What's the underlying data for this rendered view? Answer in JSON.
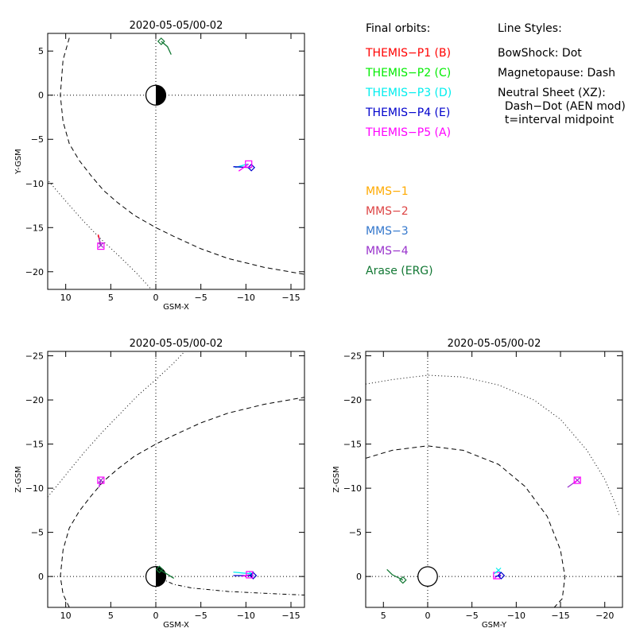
{
  "chart_data": [
    {
      "type": "scatter",
      "title": "2020-05-05/00-02",
      "xlabel": "GSM-X",
      "ylabel": "Y-GSM",
      "xlim": [
        12,
        -16.5
      ],
      "ylim": [
        7,
        -22
      ],
      "xticks": [
        10,
        5,
        0,
        -5,
        -10,
        -15
      ],
      "yticks": [
        -20,
        -15,
        -10,
        -5,
        0,
        5
      ],
      "grid": "dotted zero lines",
      "curves": [
        {
          "name": "bow-shock",
          "style": "dotted",
          "x": [
            12.1,
            10,
            8,
            6,
            4,
            2,
            0.5
          ],
          "y": [
            -9.5,
            -12,
            -14.3,
            -16.4,
            -18.3,
            -20.3,
            -22
          ]
        },
        {
          "name": "magnetopause",
          "style": "dashed",
          "x": [
            9.6,
            10.3,
            10.6,
            10.3,
            9.6,
            8.5,
            7.2,
            5.8,
            4.2,
            2.4,
            0,
            -2,
            -5,
            -8,
            -12,
            -16.5
          ],
          "y": [
            6.5,
            4,
            0,
            -3,
            -5.5,
            -7.4,
            -9.1,
            -10.8,
            -12.2,
            -13.6,
            -15,
            -16,
            -17.4,
            -18.5,
            -19.5,
            -20.3
          ]
        }
      ],
      "tracks": [
        {
          "name": "THEMIS-P5",
          "color": "#ff00ff",
          "x": [
            6.4,
            6.1
          ],
          "y": [
            -15.8,
            -17.1
          ],
          "marker": "square"
        },
        {
          "name": "THEMIS-P1",
          "color": "#ff0000",
          "x": [
            6.4,
            6.1
          ],
          "y": [
            -15.8,
            -17.1
          ],
          "marker": "none"
        },
        {
          "name": "MMS-4",
          "color": "#9933cc",
          "x": [
            6.3,
            6.1
          ],
          "y": [
            -16.2,
            -17
          ],
          "marker": "x"
        },
        {
          "name": "THEMIS-P3",
          "color": "#00eeee",
          "x": [
            -8.8,
            -10.2
          ],
          "y": [
            -8.2,
            -7.8
          ],
          "marker": "none"
        },
        {
          "name": "THEMIS-P4",
          "color": "#0000cc",
          "x": [
            -8.6,
            -10.6
          ],
          "y": [
            -8.1,
            -8.2
          ],
          "marker": "diamond"
        },
        {
          "name": "THEMIS-P5 (A)",
          "color": "#ff00ff",
          "x": [
            -9.2,
            -10.3
          ],
          "y": [
            -8.6,
            -7.8
          ],
          "marker": "square"
        },
        {
          "name": "Arase (ERG)",
          "color": "#117733",
          "x": [
            -1.7,
            -1.3,
            -0.6
          ],
          "y": [
            4.6,
            5.5,
            6.1
          ],
          "marker": "diamond"
        }
      ]
    },
    {
      "type": "scatter",
      "title": "2020-05-05/00-02",
      "xlabel": "GSM-X",
      "ylabel": "Z-GSM",
      "xlim": [
        12,
        -16.5
      ],
      "ylim": [
        -25.5,
        3.5
      ],
      "xticks": [
        10,
        5,
        0,
        -5,
        -10,
        -15
      ],
      "yticks": [
        -25,
        -20,
        -15,
        -10,
        -5,
        0
      ],
      "grid": "dotted zero lines",
      "curves": [
        {
          "name": "bow-shock",
          "style": "dotted",
          "x": [
            12,
            10,
            8,
            6,
            4,
            2,
            0,
            -2,
            -3.2
          ],
          "y": [
            -9,
            -11.5,
            -14,
            -16.3,
            -18.4,
            -20.5,
            -22.3,
            -24.2,
            -25.5
          ]
        },
        {
          "name": "magnetopause",
          "style": "dashed",
          "x": [
            9.6,
            10.3,
            10.6,
            10.3,
            9.6,
            8.5,
            7.2,
            5.8,
            4.2,
            2.4,
            0,
            -2,
            -5,
            -8,
            -12,
            -16.5
          ],
          "y": [
            3.5,
            2,
            0,
            -3,
            -5.5,
            -7.4,
            -9.1,
            -10.8,
            -12.2,
            -13.6,
            -15,
            -16,
            -17.4,
            -18.5,
            -19.5,
            -20.3
          ]
        },
        {
          "name": "neutral-sheet",
          "style": "dashdot",
          "x": [
            -0.5,
            -2,
            -4,
            -6,
            -8,
            -10,
            -12,
            -14,
            -16.5
          ],
          "y": [
            0.2,
            0.9,
            1.3,
            1.5,
            1.7,
            1.8,
            1.9,
            2,
            2.1
          ]
        }
      ],
      "tracks": [
        {
          "name": "THEMIS-P5",
          "color": "#ff00ff",
          "x": [
            6.3,
            6.1
          ],
          "y": [
            -10.1,
            -10.9
          ],
          "marker": "square"
        },
        {
          "name": "MMS-4",
          "color": "#9933cc",
          "x": [
            6.3,
            6.1
          ],
          "y": [
            -10.2,
            -10.9
          ],
          "marker": "x"
        },
        {
          "name": "THEMIS-P3",
          "color": "#00eeee",
          "x": [
            -8.6,
            -10.6
          ],
          "y": [
            -0.5,
            -0.3
          ],
          "marker": "x"
        },
        {
          "name": "THEMIS-P4",
          "color": "#0000cc",
          "x": [
            -8.6,
            -10.8
          ],
          "y": [
            -0.1,
            -0.1
          ],
          "marker": "diamond"
        },
        {
          "name": "THEMIS-P5 (A)",
          "color": "#ff00ff",
          "x": [
            -9.5,
            -10.4
          ],
          "y": [
            0,
            -0.2
          ],
          "marker": "square"
        },
        {
          "name": "Arase (ERG)",
          "color": "#117733",
          "x": [
            -2,
            -1.2,
            -0.4
          ],
          "y": [
            0.2,
            -0.3,
            -0.8
          ],
          "marker": "diamond"
        }
      ]
    },
    {
      "type": "scatter",
      "title": "2020-05-05/00-02",
      "xlabel": "GSM-Y",
      "ylabel": "Z-GSM",
      "xlim": [
        7,
        -22
      ],
      "ylim": [
        -25.5,
        3.5
      ],
      "xticks": [
        5,
        0,
        -5,
        -10,
        -15,
        -20
      ],
      "yticks": [
        -25,
        -20,
        -15,
        -10,
        -5,
        0
      ],
      "grid": "dotted zero lines",
      "curves": [
        {
          "name": "bow-shock",
          "style": "dotted",
          "x": [
            7,
            4,
            0,
            -4,
            -8,
            -12,
            -15,
            -18,
            -20,
            -21,
            -21.6
          ],
          "y": [
            -21.8,
            -22.3,
            -22.8,
            -22.6,
            -21.7,
            -20,
            -17.8,
            -14.3,
            -11,
            -8.7,
            -7
          ]
        },
        {
          "name": "magnetopause",
          "style": "dashed",
          "x": [
            7,
            4,
            0,
            -4,
            -8,
            -11,
            -13.5,
            -15,
            -15.5,
            -15.2,
            -14.3
          ],
          "y": [
            -13.4,
            -14.3,
            -14.8,
            -14.3,
            -12.7,
            -10.2,
            -6.8,
            -3,
            0,
            2.5,
            3.5
          ]
        }
      ],
      "tracks": [
        {
          "name": "Arase (ERG)",
          "color": "#117733",
          "x": [
            4.6,
            4,
            2.8
          ],
          "y": [
            -0.8,
            -0.2,
            0.4
          ],
          "marker": "diamond"
        },
        {
          "name": "THEMIS-P5 (A)",
          "color": "#ff00ff",
          "x": [
            -7.6,
            -7.8
          ],
          "y": [
            0.2,
            -0.1
          ],
          "marker": "square"
        },
        {
          "name": "THEMIS-P3",
          "color": "#00eeee",
          "x": [
            -7.5,
            -8
          ],
          "y": [
            -0.3,
            -0.7
          ],
          "marker": "x"
        },
        {
          "name": "THEMIS-P4",
          "color": "#0000cc",
          "x": [
            -7.6,
            -8.3
          ],
          "y": [
            0,
            -0.1
          ],
          "marker": "diamond"
        },
        {
          "name": "MMS-4",
          "color": "#9933cc",
          "x": [
            -15.8,
            -16.9
          ],
          "y": [
            -10.1,
            -10.9
          ],
          "marker": "x"
        },
        {
          "name": "THEMIS-P5",
          "color": "#ff00ff",
          "x": [
            -16.5,
            -16.9
          ],
          "y": [
            -10.6,
            -10.9
          ],
          "marker": "square"
        }
      ]
    }
  ],
  "legend": {
    "orbits_title": "Final orbits:",
    "orbits": [
      {
        "label": "THEMIS−P1 (B)",
        "color": "#ff0000"
      },
      {
        "label": "THEMIS−P2 (C)",
        "color": "#00ee00"
      },
      {
        "label": "THEMIS−P3 (D)",
        "color": "#00eeee"
      },
      {
        "label": "THEMIS−P4 (E)",
        "color": "#0000cc"
      },
      {
        "label": "THEMIS−P5 (A)",
        "color": "#ff00ff"
      }
    ],
    "styles_title": "Line Styles:",
    "styles": [
      "BowShock: Dot",
      "Magnetopause: Dash",
      "Neutral Sheet (XZ):",
      "  Dash−Dot (AEN mod)",
      "  t=interval midpoint"
    ],
    "missions": [
      {
        "label": "MMS−1",
        "color": "#ffaa00"
      },
      {
        "label": "MMS−2",
        "color": "#dd4444"
      },
      {
        "label": "MMS−3",
        "color": "#3377cc"
      },
      {
        "label": "MMS−4",
        "color": "#9933cc"
      },
      {
        "label": "Arase (ERG)",
        "color": "#117733"
      }
    ]
  }
}
